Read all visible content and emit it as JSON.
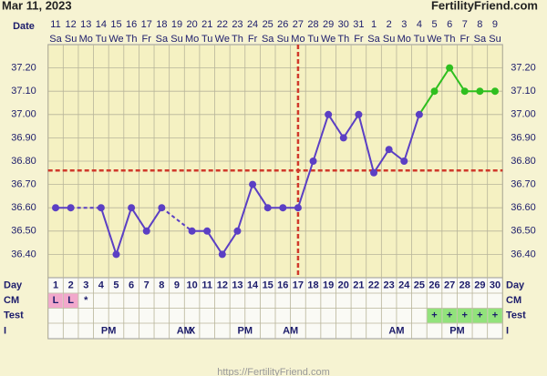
{
  "header": {
    "date": "Mar 11, 2023",
    "site": "FertilityFriend.com"
  },
  "chart_data": {
    "type": "line",
    "row_labels": {
      "date": "Date",
      "day": "Day",
      "cm": "CM",
      "test": "Test",
      "intercourse": "I"
    },
    "dates": [
      11,
      12,
      13,
      14,
      15,
      16,
      17,
      18,
      19,
      20,
      21,
      22,
      23,
      24,
      25,
      26,
      27,
      28,
      29,
      30,
      31,
      1,
      2,
      3,
      4,
      5,
      6,
      7,
      8,
      9
    ],
    "weekdays": [
      "Sa",
      "Su",
      "Mo",
      "Tu",
      "We",
      "Th",
      "Fr",
      "Sa",
      "Su",
      "Mo",
      "Tu",
      "We",
      "Th",
      "Fr",
      "Sa",
      "Su",
      "Mo",
      "Tu",
      "We",
      "Th",
      "Fr",
      "Sa",
      "Su",
      "Mo",
      "Tu",
      "We",
      "Th",
      "Fr",
      "Sa",
      "Su"
    ],
    "categories": [
      1,
      2,
      3,
      4,
      5,
      6,
      7,
      8,
      9,
      10,
      11,
      12,
      13,
      14,
      15,
      16,
      17,
      18,
      19,
      20,
      21,
      22,
      23,
      24,
      25,
      26,
      27,
      28,
      29,
      30
    ],
    "series": [
      {
        "color": "#5b3fc4",
        "values": [
          36.6,
          36.6,
          null,
          36.6,
          36.4,
          36.6,
          36.5,
          36.6,
          null,
          36.5,
          36.5,
          36.4,
          36.5,
          36.7,
          36.6,
          36.6,
          36.6,
          36.8,
          37.0,
          36.9,
          37.0,
          36.75,
          36.85,
          36.8,
          37.0,
          null,
          null,
          null,
          null,
          null
        ]
      },
      {
        "color": "#2fbf1f",
        "values": [
          null,
          null,
          null,
          null,
          null,
          null,
          null,
          null,
          null,
          null,
          null,
          null,
          null,
          null,
          null,
          null,
          null,
          null,
          null,
          null,
          null,
          null,
          null,
          null,
          37.0,
          37.1,
          37.2,
          37.1,
          37.1,
          37.1
        ]
      }
    ],
    "ylim": [
      36.3,
      37.3
    ],
    "yticks": [
      {
        "value": 36.4,
        "label": "36.40"
      },
      {
        "value": 36.5,
        "label": "36.50"
      },
      {
        "value": 36.6,
        "label": "36.60"
      },
      {
        "value": 36.7,
        "label": "36.70"
      },
      {
        "value": 36.8,
        "label": "36.80"
      },
      {
        "value": 36.9,
        "label": "36.90"
      },
      {
        "value": 37.0,
        "label": "37.00"
      },
      {
        "value": 37.1,
        "label": "37.10"
      },
      {
        "value": 37.2,
        "label": "37.20"
      }
    ],
    "grid": true,
    "coverline": 36.76,
    "ovulation_day": 17,
    "reference_color": "#d0392b",
    "cm": [
      "L",
      "L",
      "*",
      null,
      null,
      null,
      null,
      null,
      null,
      null,
      null,
      null,
      null,
      null,
      null,
      null,
      null,
      null,
      null,
      null,
      null,
      null,
      null,
      null,
      null,
      null,
      null,
      null,
      null,
      null
    ],
    "cm_color": "#f2a8cc",
    "test": [
      null,
      null,
      null,
      null,
      null,
      null,
      null,
      null,
      null,
      null,
      null,
      null,
      null,
      null,
      null,
      null,
      null,
      null,
      null,
      null,
      null,
      null,
      null,
      null,
      null,
      "+",
      "+",
      "+",
      "+",
      "+"
    ],
    "test_color": "#92e27c",
    "intercourse": [
      null,
      null,
      null,
      "PM",
      null,
      null,
      null,
      null,
      "AM",
      "X",
      null,
      null,
      "PM",
      null,
      null,
      "AM",
      null,
      null,
      null,
      null,
      null,
      null,
      "AM",
      null,
      null,
      null,
      "PM",
      null,
      null,
      null
    ]
  },
  "footer": "https://FertilityFriend.com"
}
